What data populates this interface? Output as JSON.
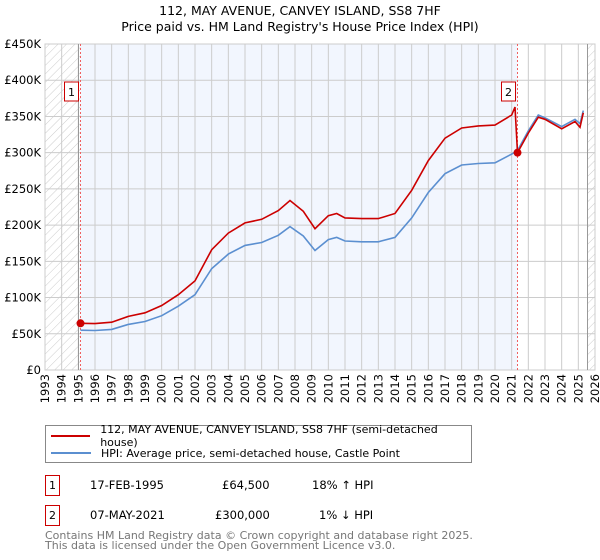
{
  "chart_data": {
    "type": "line",
    "title": "112, MAY AVENUE, CANVEY ISLAND, SS8 7HF",
    "subtitle": "Price paid vs. HM Land Registry's House Price Index (HPI)",
    "xlim": [
      1993,
      2026
    ],
    "ylim": [
      0,
      450000
    ],
    "y_ticks": [
      0,
      50000,
      100000,
      150000,
      200000,
      250000,
      300000,
      350000,
      400000,
      450000
    ],
    "y_tick_labels": [
      "£0",
      "£50K",
      "£100K",
      "£150K",
      "£200K",
      "£250K",
      "£300K",
      "£350K",
      "£400K",
      "£450K"
    ],
    "x_ticks": [
      "1993",
      "1994",
      "1995",
      "1996",
      "1997",
      "1998",
      "1999",
      "2000",
      "2001",
      "2002",
      "2003",
      "2004",
      "2005",
      "2006",
      "2007",
      "2008",
      "2009",
      "2010",
      "2011",
      "2012",
      "2013",
      "2014",
      "2015",
      "2016",
      "2017",
      "2018",
      "2019",
      "2020",
      "2021",
      "2022",
      "2023",
      "2024",
      "2025",
      "2026"
    ],
    "series": [
      {
        "name": "112, MAY AVENUE, CANVEY ISLAND, SS8 7HF (semi-detached house)",
        "color": "#cc0000",
        "x": [
          1995.13,
          1996,
          1997,
          1998,
          1999,
          2000,
          2001,
          2002,
          2003,
          2004,
          2005,
          2006,
          2007,
          2007.7,
          2008.5,
          2009.2,
          2010,
          2010.5,
          2011,
          2012,
          2013,
          2014,
          2015,
          2016,
          2017,
          2018,
          2019,
          2020,
          2021,
          2021.2,
          2021.35,
          2022,
          2022.6,
          2023,
          2024,
          2024.8,
          2025.1,
          2025.3
        ],
        "y": [
          64500,
          64000,
          66000,
          74000,
          79000,
          89000,
          104000,
          123000,
          166000,
          189000,
          203000,
          208000,
          220000,
          234000,
          219000,
          195000,
          213000,
          216000,
          210000,
          209000,
          209000,
          216000,
          248000,
          289000,
          320000,
          334000,
          337000,
          338000,
          352000,
          363000,
          300000,
          327000,
          349000,
          346000,
          333000,
          343000,
          335000,
          355000
        ]
      },
      {
        "name": "HPI: Average price, semi-detached house, Castle Point",
        "color": "#5b8fd0",
        "x": [
          1995.13,
          1996,
          1997,
          1998,
          1999,
          2000,
          2001,
          2002,
          2003,
          2004,
          2005,
          2006,
          2007,
          2007.7,
          2008.5,
          2009.2,
          2010,
          2010.5,
          2011,
          2012,
          2013,
          2014,
          2015,
          2016,
          2017,
          2018,
          2019,
          2020,
          2021,
          2021.35,
          2022,
          2022.6,
          2023,
          2024,
          2024.8,
          2025.1,
          2025.3
        ],
        "y": [
          55000,
          54500,
          56000,
          63000,
          67000,
          75000,
          88000,
          104000,
          140000,
          160000,
          172000,
          176000,
          186000,
          198000,
          185000,
          165000,
          180000,
          183000,
          178000,
          177000,
          177000,
          183000,
          210000,
          245000,
          271000,
          283000,
          285000,
          286000,
          298000,
          303000,
          330000,
          352000,
          348000,
          336000,
          346000,
          340000,
          358000
        ]
      }
    ],
    "sales": [
      {
        "label": "1",
        "x": 1995.13,
        "y": 64500
      },
      {
        "label": "2",
        "x": 2021.35,
        "y": 300000
      }
    ]
  },
  "legend": {
    "sale": "112, MAY AVENUE, CANVEY ISLAND, SS8 7HF (semi-detached house)",
    "hpi": "HPI: Average price, semi-detached house, Castle Point"
  },
  "transactions": [
    {
      "num": "1",
      "date": "17-FEB-1995",
      "price": "£64,500",
      "hpi": "18% ↑ HPI"
    },
    {
      "num": "2",
      "date": "07-MAY-2021",
      "price": "£300,000",
      "hpi": "1% ↓ HPI"
    }
  ],
  "footer": {
    "line1": "Contains HM Land Registry data © Crown copyright and database right 2025.",
    "line2": "This data is licensed under the Open Government Licence v3.0."
  }
}
